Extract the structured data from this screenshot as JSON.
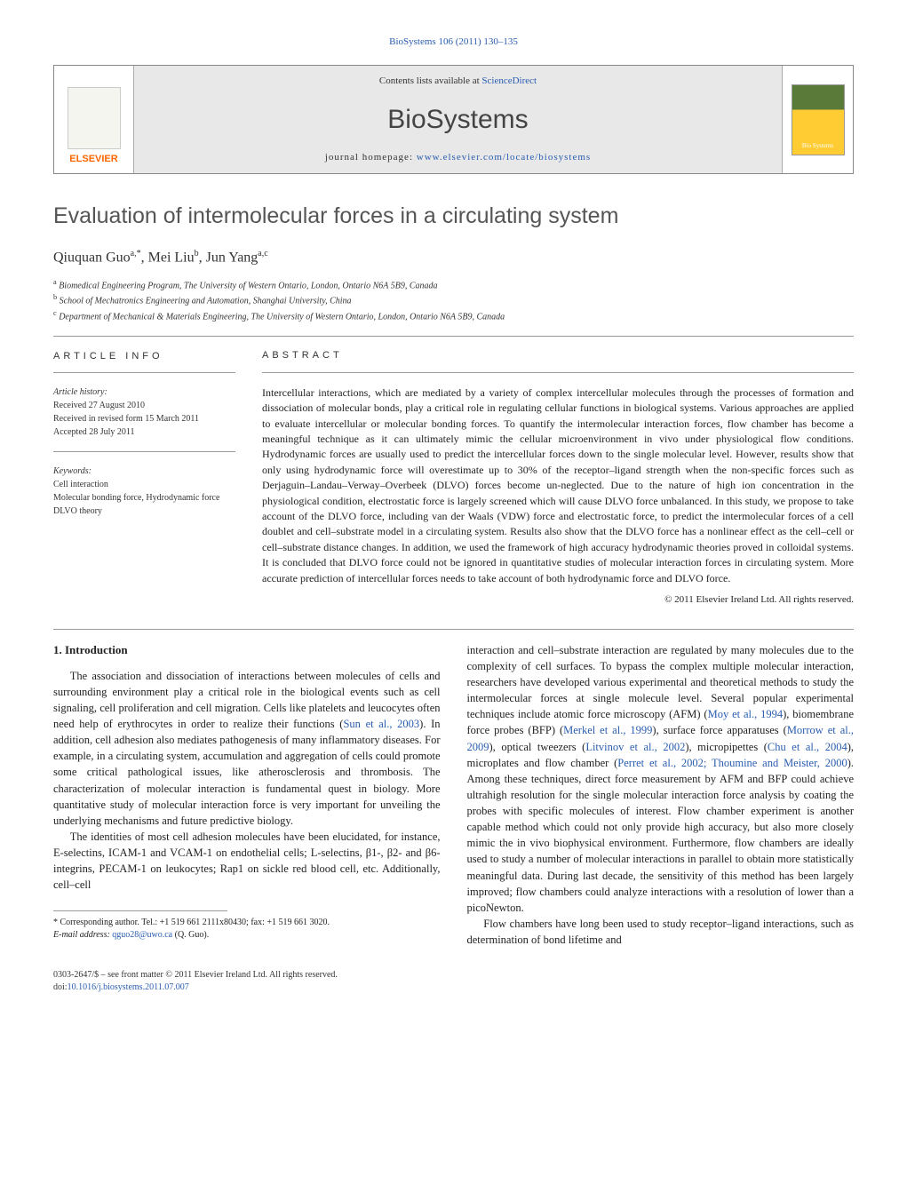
{
  "header": {
    "citation_prefix": "BioSystems",
    "citation": "106 (2011) 130–135",
    "citation_link": "BioSystems 106 (2011) 130–135"
  },
  "banner": {
    "elsevier_label": "ELSEVIER",
    "contents_prefix": "Contents lists available at ",
    "contents_link": "ScienceDirect",
    "journal_name": "BioSystems",
    "homepage_prefix": "journal homepage: ",
    "homepage_link": "www.elsevier.com/locate/biosystems"
  },
  "title": "Evaluation of intermolecular forces in a circulating system",
  "authors_html": "Qiuquan Guo",
  "authors": [
    {
      "name": "Qiuquan Guo",
      "sup": "a,*"
    },
    {
      "name": "Mei Liu",
      "sup": "b"
    },
    {
      "name": "Jun Yang",
      "sup": "a,c"
    }
  ],
  "affiliations": [
    {
      "sup": "a",
      "text": "Biomedical Engineering Program, The University of Western Ontario, London, Ontario N6A 5B9, Canada"
    },
    {
      "sup": "b",
      "text": "School of Mechatronics Engineering and Automation, Shanghai University, China"
    },
    {
      "sup": "c",
      "text": "Department of Mechanical & Materials Engineering, The University of Western Ontario, London, Ontario N6A 5B9, Canada"
    }
  ],
  "article_info": {
    "heading": "ARTICLE INFO",
    "history_label": "Article history:",
    "history": [
      "Received 27 August 2010",
      "Received in revised form 15 March 2011",
      "Accepted 28 July 2011"
    ],
    "keywords_label": "Keywords:",
    "keywords": [
      "Cell interaction",
      "Molecular bonding force, Hydrodynamic force",
      "DLVO theory"
    ]
  },
  "abstract": {
    "heading": "ABSTRACT",
    "text": "Intercellular interactions, which are mediated by a variety of complex intercellular molecules through the processes of formation and dissociation of molecular bonds, play a critical role in regulating cellular functions in biological systems. Various approaches are applied to evaluate intercellular or molecular bonding forces. To quantify the intermolecular interaction forces, flow chamber has become a meaningful technique as it can ultimately mimic the cellular microenvironment in vivo under physiological flow conditions. Hydrodynamic forces are usually used to predict the intercellular forces down to the single molecular level. However, results show that only using hydrodynamic force will overestimate up to 30% of the receptor–ligand strength when the non-specific forces such as Derjaguin–Landau–Verway–Overbeek (DLVO) forces become un-neglected. Due to the nature of high ion concentration in the physiological condition, electrostatic force is largely screened which will cause DLVO force unbalanced. In this study, we propose to take account of the DLVO force, including van der Waals (VDW) force and electrostatic force, to predict the intermolecular forces of a cell doublet and cell–substrate model in a circulating system. Results also show that the DLVO force has a nonlinear effect as the cell–cell or cell–substrate distance changes. In addition, we used the framework of high accuracy hydrodynamic theories proved in colloidal systems. It is concluded that DLVO force could not be ignored in quantitative studies of molecular interaction forces in circulating system. More accurate prediction of intercellular forces needs to take account of both hydrodynamic force and DLVO force.",
    "copyright": "© 2011 Elsevier Ireland Ltd. All rights reserved."
  },
  "body": {
    "section_heading": "1. Introduction",
    "para1": "The association and dissociation of interactions between molecules of cells and surrounding environment play a critical role in the biological events such as cell signaling, cell proliferation and cell migration. Cells like platelets and leucocytes often need help of erythrocytes in order to realize their functions (",
    "para1_link1": "Sun et al., 2003",
    "para1_b": "). In addition, cell adhesion also mediates pathogenesis of many inflammatory diseases. For example, in a circulating system, accumulation and aggregation of cells could promote some critical pathological issues, like atherosclerosis and thrombosis. The characterization of molecular interaction is fundamental quest in biology. More quantitative study of molecular interaction force is very important for unveiling the underlying mechanisms and future predictive biology.",
    "para2": "The identities of most cell adhesion molecules have been elucidated, for instance, E-selectins, ICAM-1 and VCAM-1 on endothelial cells; L-selectins, β1-, β2- and β6-integrins, PECAM-1 on leukocytes; Rap1 on sickle red blood cell, etc. Additionally, cell–cell",
    "para3_a": "interaction and cell–substrate interaction are regulated by many molecules due to the complexity of cell surfaces. To bypass the complex multiple molecular interaction, researchers have developed various experimental and theoretical methods to study the intermolecular forces at single molecule level. Several popular experimental techniques include atomic force microscopy (AFM) (",
    "para3_link1": "Moy et al., 1994",
    "para3_b": "), biomembrane force probes (BFP) (",
    "para3_link2": "Merkel et al., 1999",
    "para3_c": "), surface force apparatuses (",
    "para3_link3": "Morrow et al., 2009",
    "para3_d": "), optical tweezers (",
    "para3_link4": "Litvinov et al., 2002",
    "para3_e": "), micropipettes (",
    "para3_link5": "Chu et al., 2004",
    "para3_f": "), microplates and flow chamber (",
    "para3_link6": "Perret et al., 2002; Thoumine and Meister, 2000",
    "para3_g": "). Among these techniques, direct force measurement by AFM and BFP could achieve ultrahigh resolution for the single molecular interaction force analysis by coating the probes with specific molecules of interest. Flow chamber experiment is another capable method which could not only provide high accuracy, but also more closely mimic the in vivo biophysical environment. Furthermore, flow chambers are ideally used to study a number of molecular interactions in parallel to obtain more statistically meaningful data. During last decade, the sensitivity of this method has been largely improved; flow chambers could analyze interactions with a resolution of lower than a picoNewton.",
    "para4": "Flow chambers have long been used to study receptor–ligand interactions, such as determination of bond lifetime and"
  },
  "footnote": {
    "corr_label": "* Corresponding author. Tel.: +1 519 661 2111x80430; fax: +1 519 661 3020.",
    "email_label": "E-mail address:",
    "email": "qguo28@uwo.ca",
    "email_suffix": "(Q. Guo)."
  },
  "footer": {
    "line1": "0303-2647/$ – see front matter © 2011 Elsevier Ireland Ltd. All rights reserved.",
    "doi_prefix": "doi:",
    "doi": "10.1016/j.biosystems.2011.07.007"
  },
  "colors": {
    "link": "#2a5db0",
    "text": "#222222",
    "heading_gray": "#555555",
    "orange": "#ff6600"
  }
}
